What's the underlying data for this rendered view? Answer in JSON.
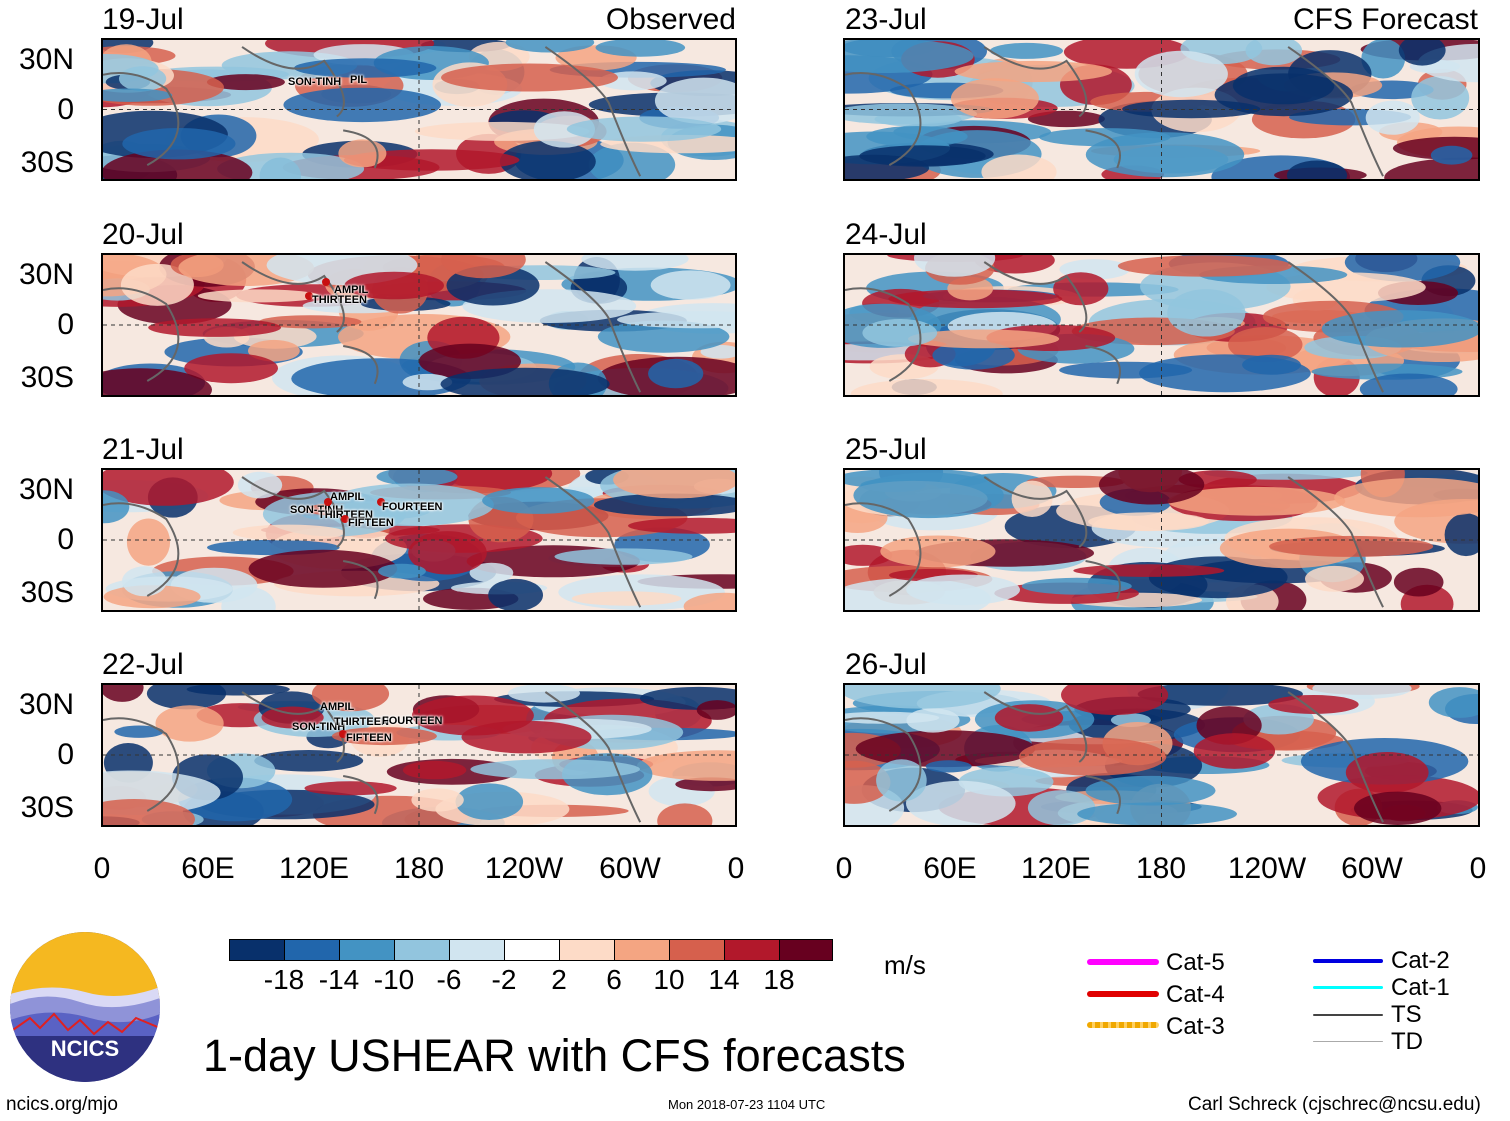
{
  "observed": {
    "header": "Observed",
    "panels": [
      {
        "date": "19-Jul",
        "storms": [
          "SON-TINH",
          "PIL"
        ]
      },
      {
        "date": "20-Jul",
        "storms": [
          "AMPIL",
          "THIRTEEN"
        ]
      },
      {
        "date": "21-Jul",
        "storms": [
          "AMPIL",
          "SON-TINH",
          "THIRTEEN",
          "FOURTEEN",
          "FIFTEEN"
        ]
      },
      {
        "date": "22-Jul",
        "storms": [
          "AMPIL",
          "SON-TINH",
          "THIRTEEN",
          "FOURTEEN",
          "FIFTEEN"
        ]
      }
    ]
  },
  "forecast": {
    "header": "CFS Forecast",
    "panels": [
      {
        "date": "23-Jul"
      },
      {
        "date": "24-Jul"
      },
      {
        "date": "25-Jul"
      },
      {
        "date": "26-Jul"
      }
    ]
  },
  "lat_labels": [
    "30N",
    "0",
    "30S"
  ],
  "lon_labels": [
    "0",
    "60E",
    "120E",
    "180",
    "120W",
    "60W",
    "0"
  ],
  "colorbar": {
    "colors": [
      "#08306b",
      "#2166ac",
      "#4393c3",
      "#92c5de",
      "#d1e5f0",
      "#ffffff",
      "#fddbc7",
      "#f4a582",
      "#d6604d",
      "#b2182b",
      "#67001f"
    ],
    "ticks": [
      "-18",
      "-14",
      "-10",
      "-6",
      "-2",
      "2",
      "6",
      "10",
      "14",
      "18"
    ],
    "units": "m/s"
  },
  "legend": [
    {
      "label": "Cat-5",
      "color": "#ff00ff"
    },
    {
      "label": "Cat-4",
      "color": "#e00000"
    },
    {
      "label": "Cat-3",
      "color": "#f0a800"
    },
    {
      "label": "Cat-2",
      "color": "#0000e0"
    },
    {
      "label": "Cat-1",
      "color": "#00ffff"
    },
    {
      "label": "TS",
      "color": "#444444"
    },
    {
      "label": "TD",
      "color": "#aaaaaa"
    }
  ],
  "logo_text": "NCICS",
  "title": "1-day USHEAR with CFS forecasts",
  "footer": {
    "left": "ncics.org/mjo",
    "center": "Mon 2018-07-23 1104 UTC",
    "right": "Carl Schreck (cjschrec@ncsu.edu)"
  }
}
